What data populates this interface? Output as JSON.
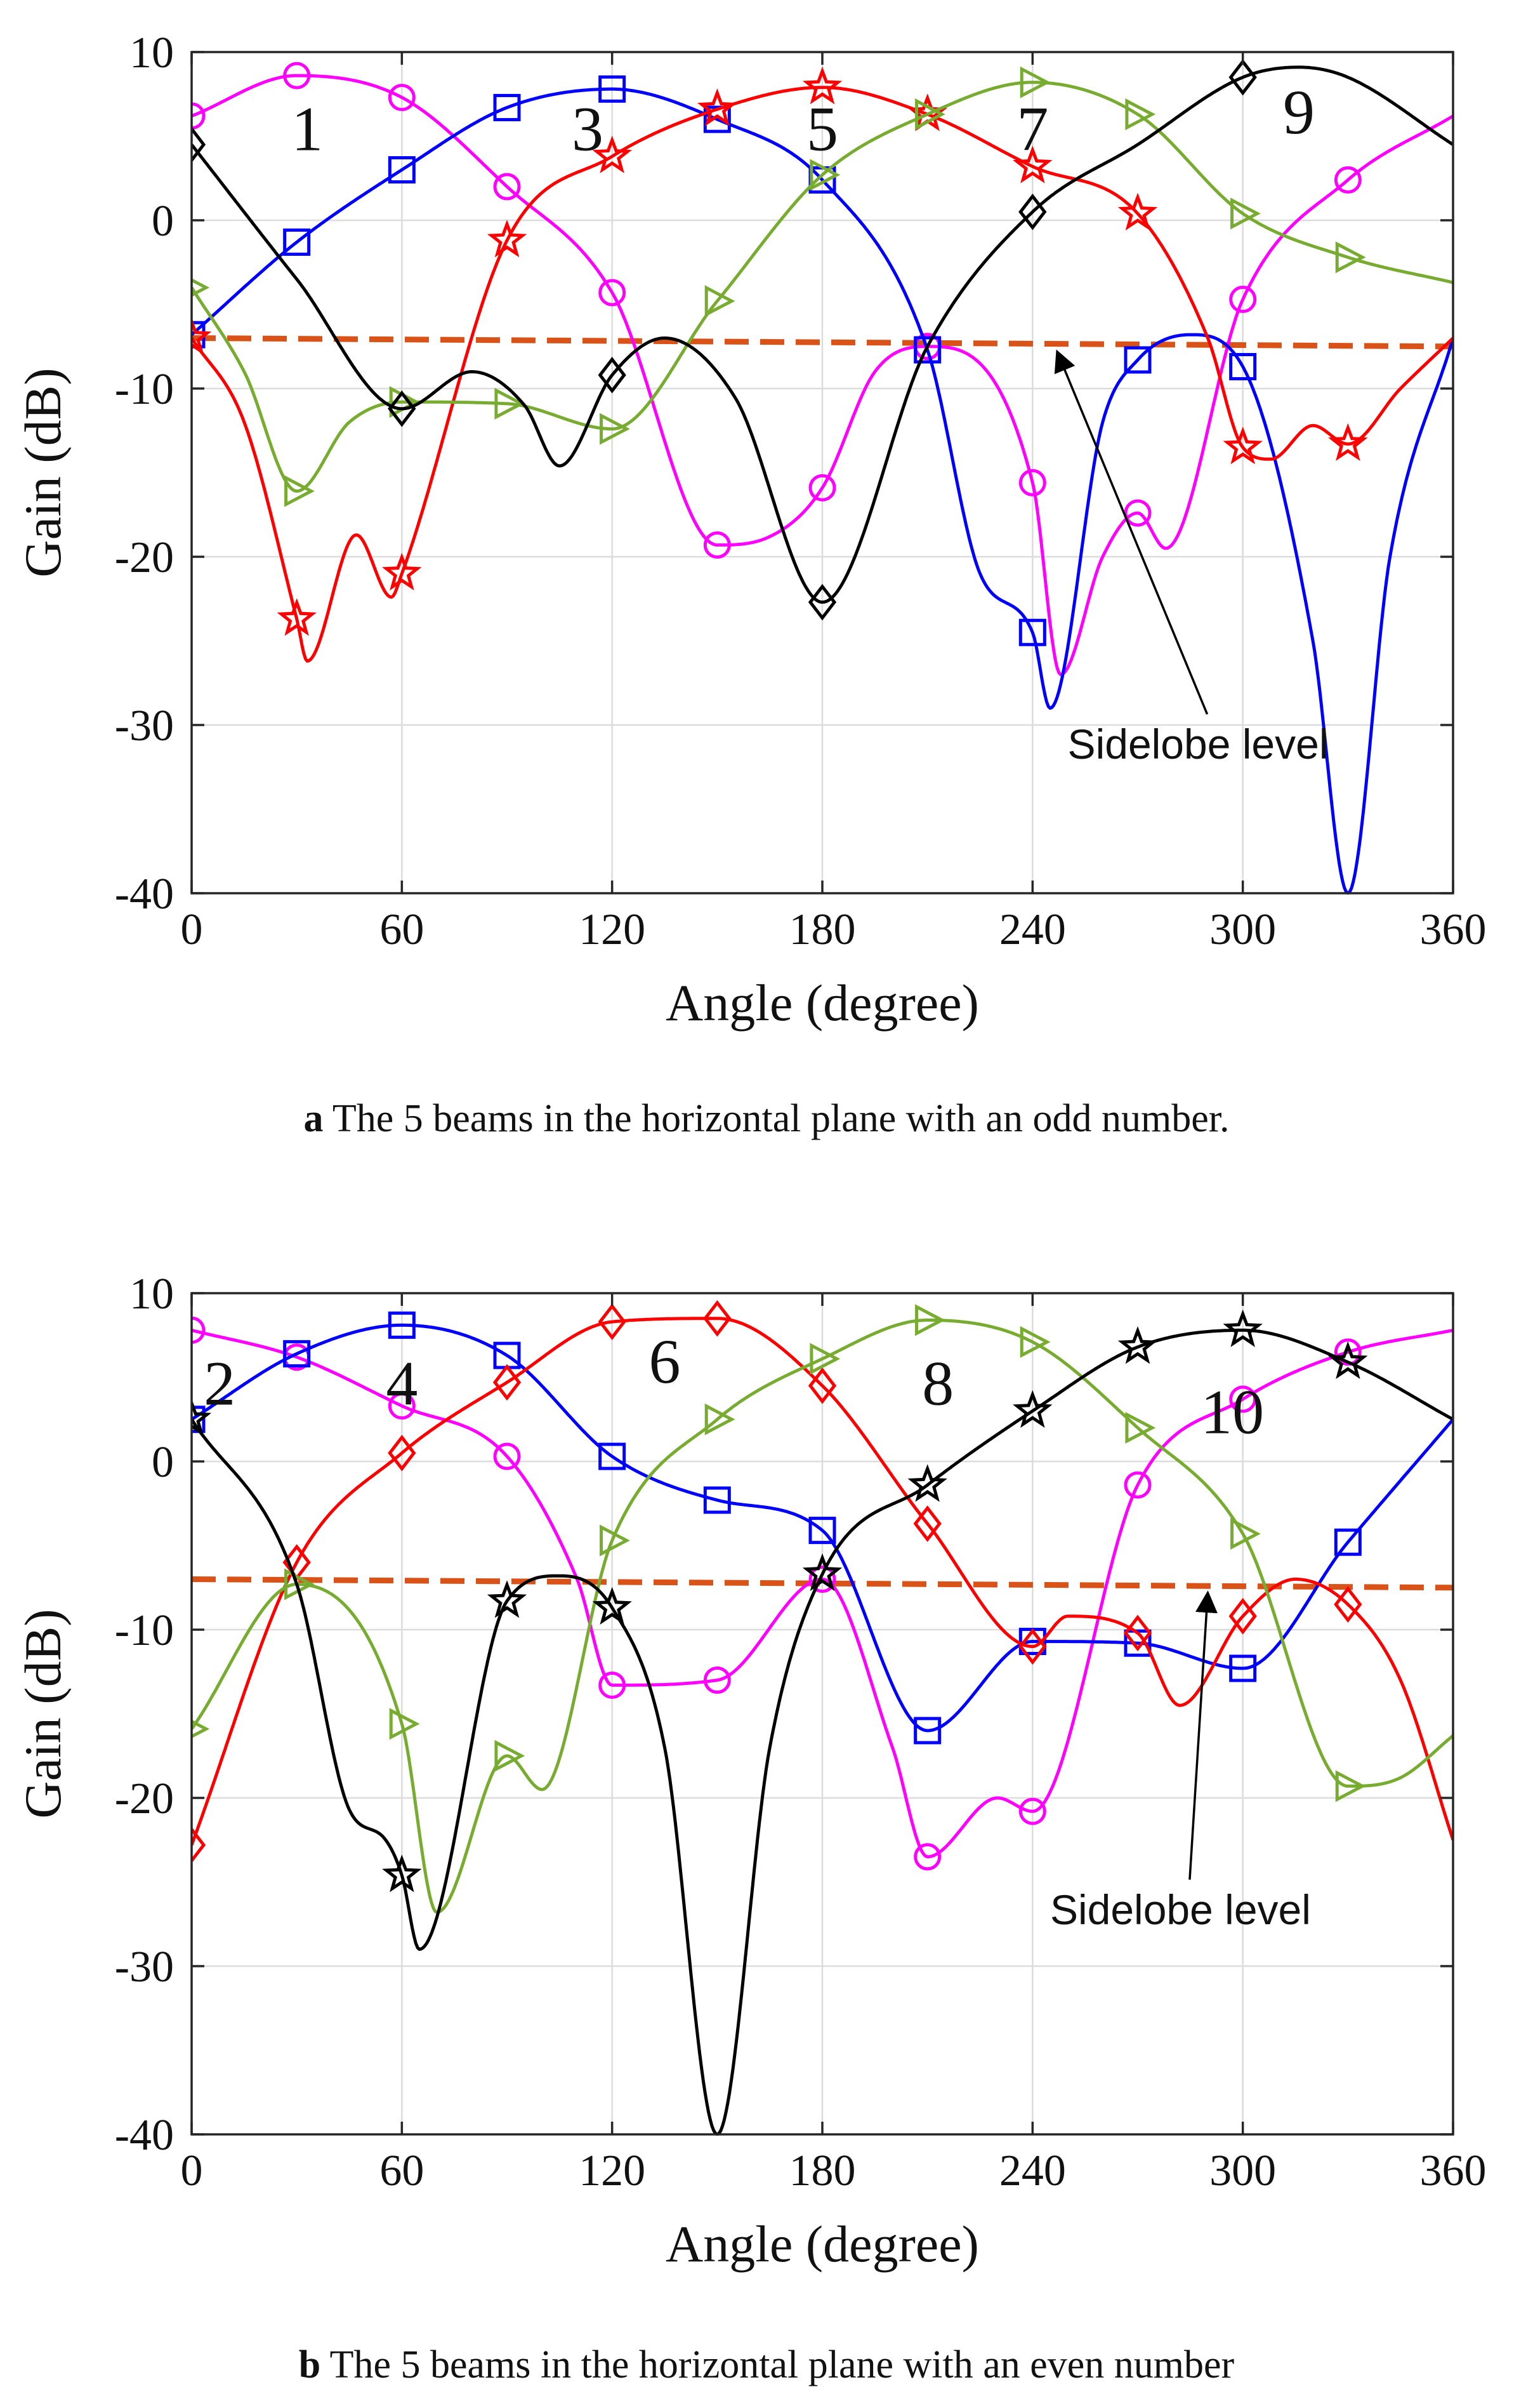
{
  "chart_data": [
    {
      "type": "line",
      "caption_letter": "a",
      "caption_text": " The 5 beams in the horizontal plane with an odd number.",
      "xlabel": "Angle (degree)",
      "ylabel": "Gain (dB)",
      "xlim": [
        0,
        360
      ],
      "ylim": [
        -40,
        10
      ],
      "xticks": [
        0,
        60,
        120,
        180,
        240,
        300,
        360
      ],
      "yticks": [
        10,
        0,
        -10,
        -20,
        -30,
        -40
      ],
      "grid": true,
      "annotation": {
        "text": "Sidelobe level",
        "arrow_to": [
          247,
          -7.8
        ],
        "text_at": [
          250,
          -32
        ]
      },
      "sidelobe": {
        "x": [
          0,
          360
        ],
        "y": [
          -7.0,
          -7.5
        ],
        "color": "#D95319"
      },
      "beam_labels": [
        {
          "text": "1",
          "x": 33,
          "y": 5.5
        },
        {
          "text": "3",
          "x": 113,
          "y": 5.5
        },
        {
          "text": "5",
          "x": 180,
          "y": 5.5
        },
        {
          "text": "7",
          "x": 240,
          "y": 5.5
        },
        {
          "text": "9",
          "x": 316,
          "y": 6.5
        }
      ],
      "series": [
        {
          "name": "Beam 1",
          "color": "#FF00FF",
          "marker": "circle",
          "x": [
            0,
            30,
            60,
            90,
            120,
            150,
            165,
            180,
            195,
            210,
            240,
            248,
            260,
            270,
            278,
            300,
            330,
            360
          ],
          "y": [
            6.2,
            8.6,
            7.3,
            2.0,
            -4.3,
            -19.3,
            -18.8,
            -15.9,
            -9,
            -7.5,
            -15.6,
            -27,
            -20,
            -17.4,
            -19.5,
            -4.7,
            2.4,
            6.2
          ],
          "mx": [
            0,
            30,
            60,
            90,
            120,
            150,
            180,
            210,
            240,
            270,
            300,
            330
          ]
        },
        {
          "name": "Beam 3",
          "color": "#0000FF",
          "marker": "square",
          "x": [
            0,
            30,
            60,
            90,
            120,
            150,
            180,
            210,
            225,
            240,
            245,
            260,
            270,
            285,
            300,
            320,
            330,
            342,
            360
          ],
          "y": [
            -6.8,
            -1.3,
            3.0,
            6.7,
            7.8,
            6.0,
            2.4,
            -7.7,
            -21,
            -24.5,
            -29,
            -12,
            -8.3,
            -6.8,
            -8.7,
            -25,
            -40,
            -20,
            -7.0
          ],
          "mx": [
            0,
            30,
            60,
            90,
            120,
            150,
            180,
            210,
            240,
            270,
            300
          ]
        },
        {
          "name": "Beam 5",
          "color": "#FF0000",
          "marker": "star",
          "x": [
            0,
            15,
            30,
            33,
            47,
            57,
            60,
            90,
            120,
            150,
            180,
            210,
            240,
            270,
            290,
            300,
            308,
            320,
            330,
            345,
            360
          ],
          "y": [
            -7.0,
            -12,
            -23.7,
            -26.2,
            -18.7,
            -22.4,
            -21,
            -1.2,
            3.8,
            6.6,
            7.9,
            6.3,
            3.2,
            0.4,
            -7,
            -13.5,
            -14.2,
            -12.2,
            -13.3,
            -10,
            -7.0
          ],
          "mx": [
            0,
            30,
            60,
            90,
            120,
            150,
            180,
            210,
            240,
            270,
            300,
            330
          ]
        },
        {
          "name": "Beam 7",
          "color": "#77AC30",
          "marker": "triangle-right",
          "x": [
            0,
            15,
            30,
            45,
            60,
            90,
            120,
            150,
            180,
            210,
            240,
            270,
            300,
            330,
            360
          ],
          "y": [
            -4.0,
            -9,
            -16.1,
            -12,
            -10.8,
            -10.9,
            -12.4,
            -4.8,
            2.7,
            6.3,
            8.2,
            6.3,
            0.4,
            -2.2,
            -3.7
          ],
          "mx": [
            0,
            30,
            60,
            90,
            120,
            150,
            180,
            210,
            240,
            270,
            300,
            330
          ]
        },
        {
          "name": "Beam 9",
          "color": "#000000",
          "marker": "diamond",
          "x": [
            0,
            30,
            60,
            80,
            95,
            105,
            120,
            135,
            155,
            180,
            210,
            240,
            270,
            300,
            316,
            330,
            360
          ],
          "y": [
            4.5,
            -3.5,
            -11.2,
            -9.0,
            -11,
            -14.6,
            -9.2,
            -7.0,
            -10.5,
            -22.7,
            -7.5,
            0.5,
            4.5,
            8.5,
            9.1,
            8.5,
            4.5
          ],
          "mx": [
            0,
            60,
            120,
            180,
            240,
            300
          ]
        }
      ]
    },
    {
      "type": "line",
      "caption_letter": "b",
      "caption_text": " The 5 beams in the horizontal plane with an even number",
      "xlabel": "Angle (degree)",
      "ylabel": "Gain (dB)",
      "xlim": [
        0,
        360
      ],
      "ylim": [
        -40,
        10
      ],
      "xticks": [
        0,
        60,
        120,
        180,
        240,
        300,
        360
      ],
      "yticks": [
        10,
        0,
        -10,
        -20,
        -30,
        -40
      ],
      "grid": true,
      "annotation": {
        "text": "Sidelobe level",
        "arrow_to": [
          290,
          -7.8
        ],
        "text_at": [
          245,
          -27.5
        ]
      },
      "sidelobe": {
        "x": [
          0,
          360
        ],
        "y": [
          -7.0,
          -7.5
        ],
        "color": "#D95319"
      },
      "beam_labels": [
        {
          "text": "2",
          "x": 8,
          "y": 4.7
        },
        {
          "text": "4",
          "x": 60,
          "y": 4.7
        },
        {
          "text": "6",
          "x": 135,
          "y": 6.0
        },
        {
          "text": "8",
          "x": 213,
          "y": 4.7
        },
        {
          "text": "10",
          "x": 297,
          "y": 3.0
        }
      ],
      "series": [
        {
          "name": "Beam 2",
          "color": "#FF00FF",
          "marker": "circle",
          "x": [
            0,
            30,
            60,
            90,
            110,
            120,
            150,
            180,
            200,
            210,
            230,
            240,
            270,
            300,
            330,
            360
          ],
          "y": [
            7.8,
            6.2,
            3.3,
            0.3,
            -7,
            -13.3,
            -13.0,
            -7.0,
            -17,
            -23.5,
            -20,
            -20.8,
            -1.4,
            3.7,
            6.5,
            7.8
          ],
          "mx": [
            0,
            30,
            60,
            90,
            120,
            150,
            180,
            210,
            240,
            270,
            300,
            330
          ]
        },
        {
          "name": "Beam 4",
          "color": "#0000FF",
          "marker": "square",
          "x": [
            0,
            30,
            60,
            90,
            120,
            150,
            180,
            210,
            240,
            270,
            300,
            330,
            360
          ],
          "y": [
            2.5,
            6.4,
            8.1,
            6.3,
            0.3,
            -2.3,
            -4.1,
            -16.0,
            -10.7,
            -10.8,
            -12.3,
            -4.8,
            2.5
          ],
          "mx": [
            0,
            30,
            60,
            90,
            120,
            150,
            180,
            210,
            240,
            270,
            300,
            330
          ]
        },
        {
          "name": "Beam 6",
          "color": "#FF0000",
          "marker": "diamond",
          "x": [
            0,
            30,
            60,
            90,
            120,
            150,
            180,
            210,
            240,
            250,
            270,
            282,
            300,
            315,
            330,
            345,
            360
          ],
          "y": [
            -22.8,
            -6.0,
            0.5,
            4.7,
            8.3,
            8.5,
            4.5,
            -3.7,
            -11.0,
            -9.2,
            -10.2,
            -14.5,
            -9.2,
            -7.0,
            -8.5,
            -13,
            -22.5
          ],
          "mx": [
            0,
            30,
            60,
            90,
            120,
            150,
            180,
            210,
            240,
            270,
            300,
            330
          ]
        },
        {
          "name": "Beam 8",
          "color": "#77AC30",
          "marker": "triangle-right",
          "x": [
            0,
            30,
            60,
            70,
            90,
            100,
            120,
            150,
            180,
            210,
            240,
            270,
            300,
            330,
            345,
            360
          ],
          "y": [
            -15.9,
            -7.3,
            -15.6,
            -26.8,
            -17.5,
            -19.5,
            -4.7,
            2.5,
            6.1,
            8.4,
            7.1,
            2.0,
            -4.3,
            -19.3,
            -18.8,
            -16.3
          ],
          "mx": [
            0,
            30,
            60,
            90,
            120,
            150,
            180,
            210,
            240,
            270,
            300,
            330
          ]
        },
        {
          "name": "Beam 10",
          "color": "#000000",
          "marker": "star",
          "x": [
            0,
            30,
            45,
            55,
            60,
            65,
            90,
            105,
            120,
            135,
            150,
            165,
            180,
            210,
            240,
            270,
            300,
            330,
            360
          ],
          "y": [
            2.5,
            -7.3,
            -20.7,
            -22.4,
            -24.6,
            -29,
            -8.3,
            -6.8,
            -8.7,
            -17,
            -40,
            -17,
            -6.7,
            -1.4,
            3.0,
            6.8,
            7.8,
            5.9,
            2.5
          ],
          "mx": [
            0,
            60,
            90,
            120,
            180,
            210,
            240,
            270,
            300,
            330
          ]
        }
      ]
    }
  ]
}
